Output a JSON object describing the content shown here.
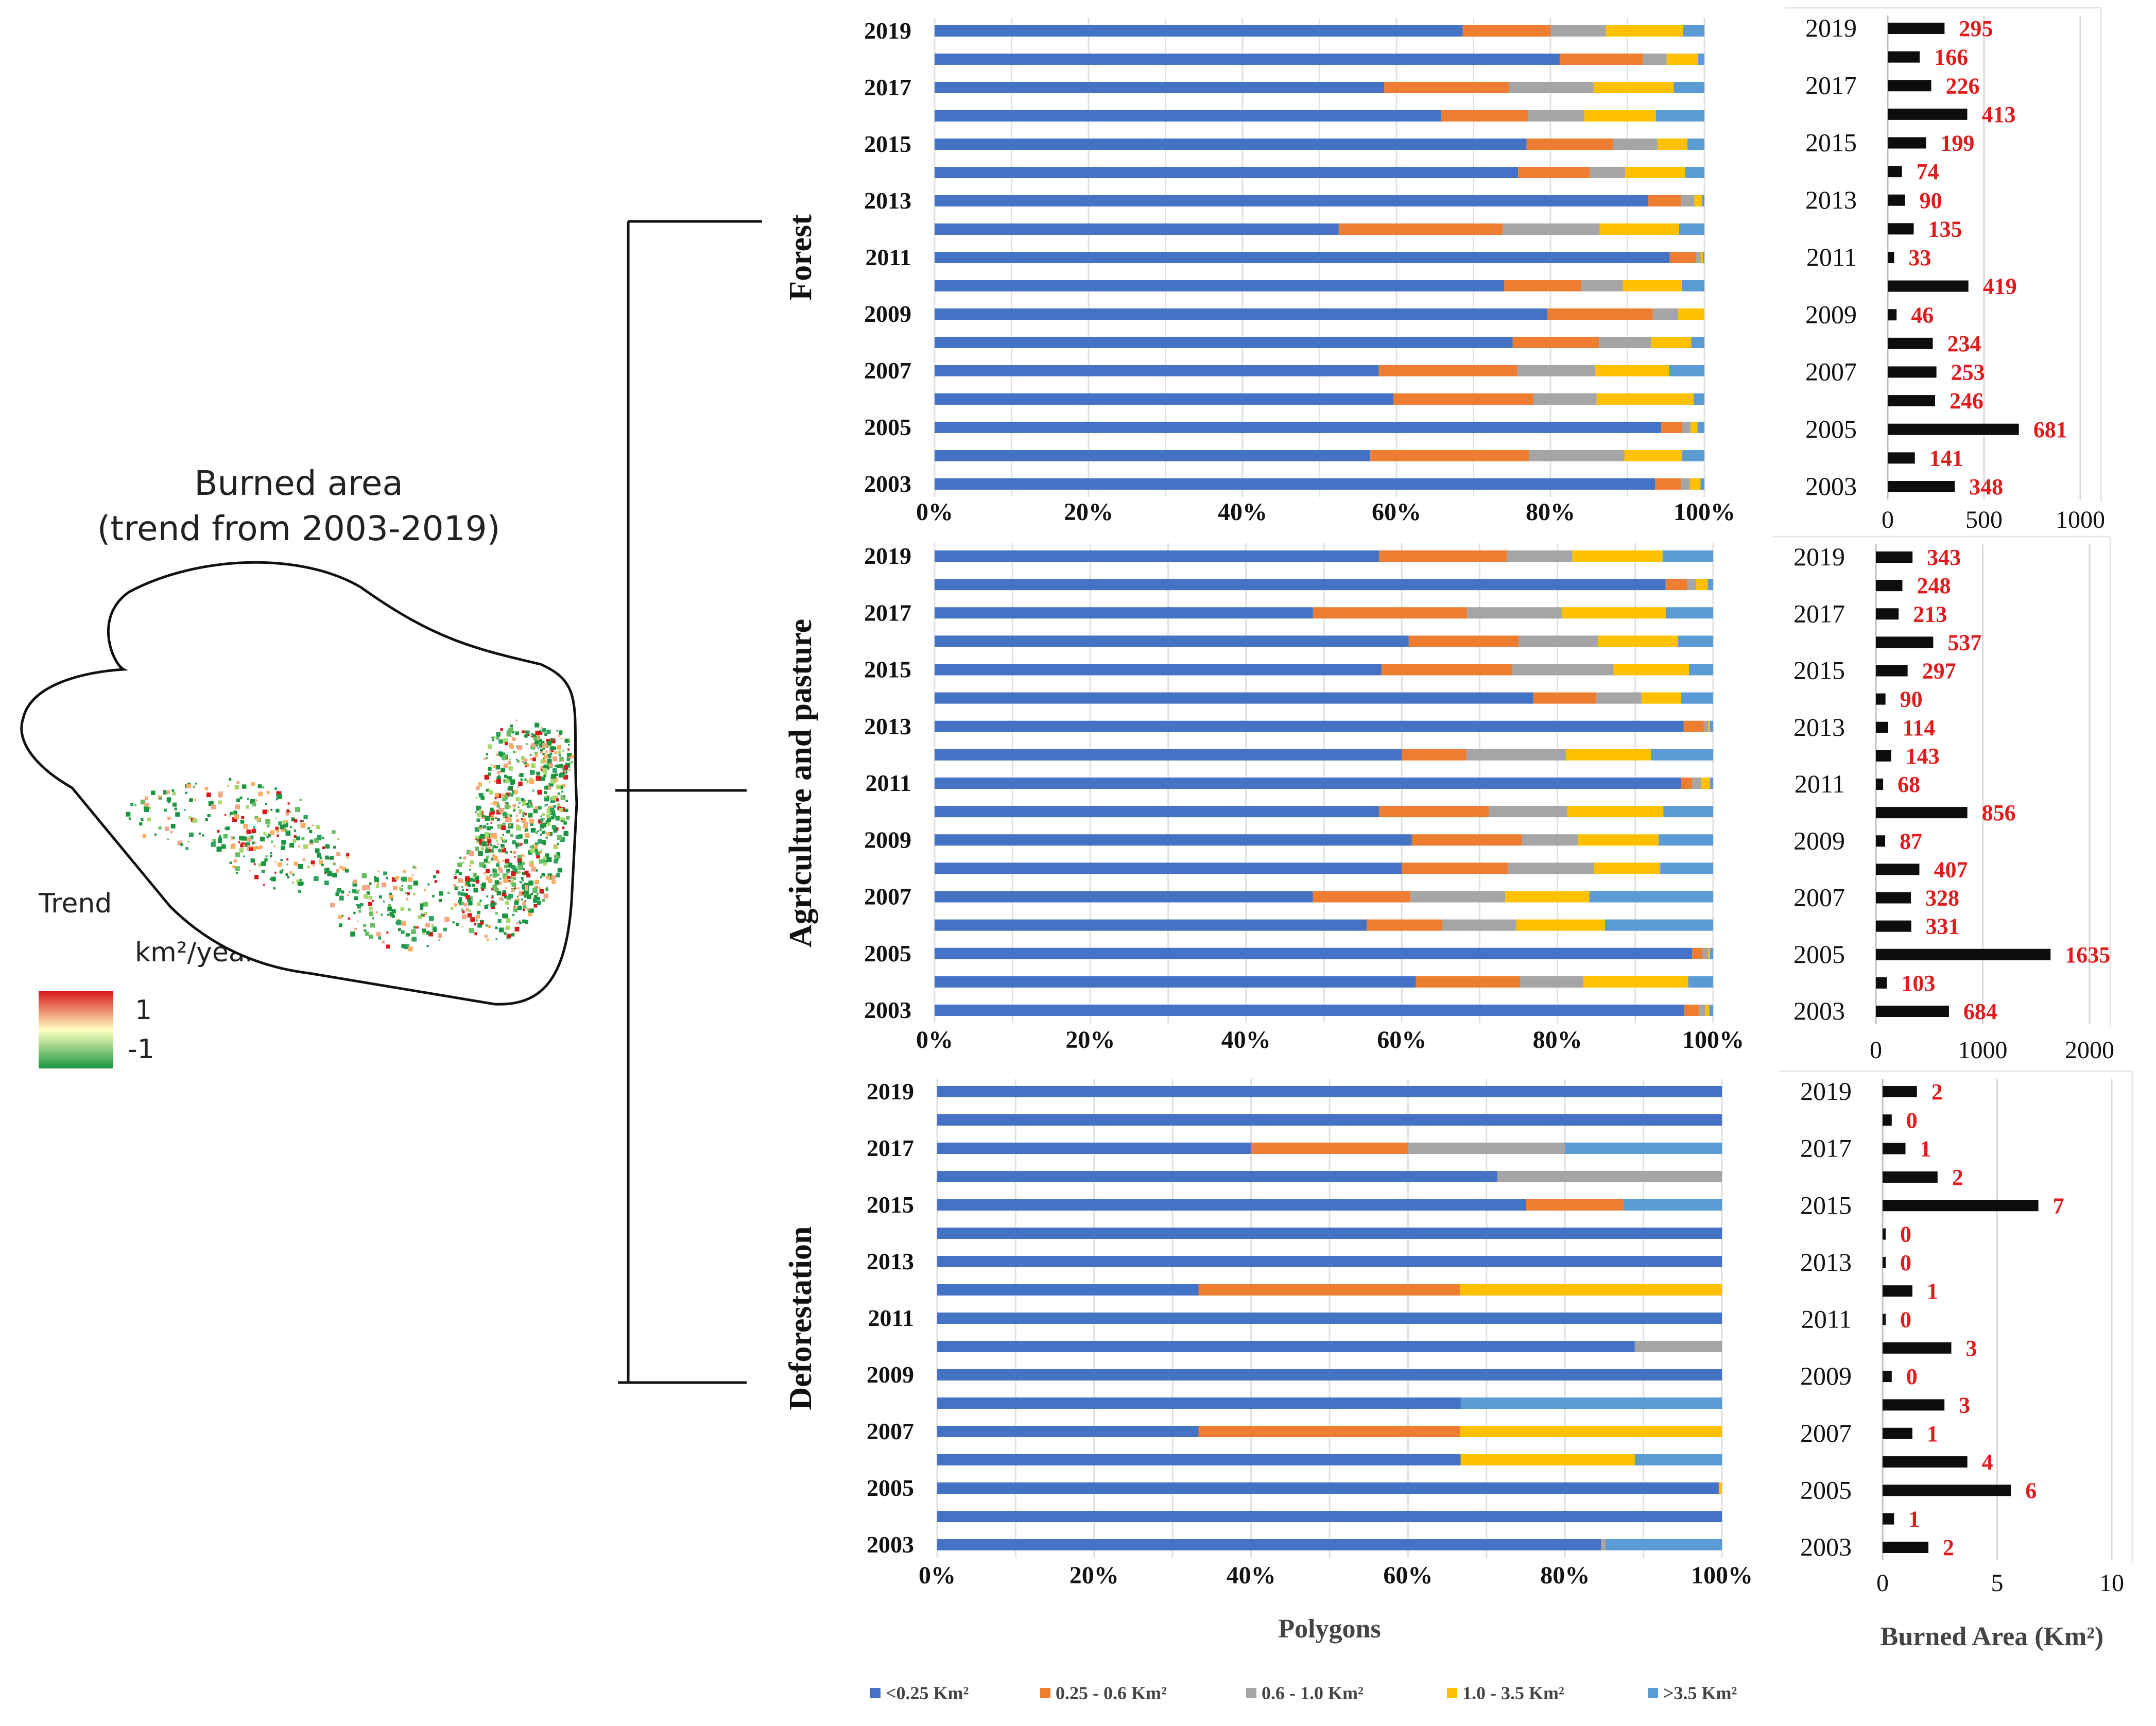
{
  "map": {
    "title_line1": "Burned area",
    "title_line2": "(trend from 2003-2019)",
    "trend_label": "Trend",
    "unit_label": "km²/year",
    "scale_max": "1",
    "scale_min": "-1",
    "colors": {
      "high": "#d7191c",
      "mid": "#ffffbf",
      "low": "#1a9641"
    }
  },
  "legend": {
    "items": [
      {
        "label": "<0.25 Km²",
        "color": "#4472c4"
      },
      {
        "label": "0.25 - 0.6 Km²",
        "color": "#ed7d31"
      },
      {
        "label": "0.6 - 1.0 Km²",
        "color": "#a5a5a5"
      },
      {
        "label": "1.0 - 3.5 Km²",
        "color": "#ffc000"
      },
      {
        "label": ">3.5 Km²",
        "color": "#5b9bd5"
      }
    ]
  },
  "chart_data": [
    {
      "type": "bar",
      "stacked": true,
      "orientation": "horizontal",
      "title": "Forest",
      "xlabel": "",
      "x_ticks": [
        "0%",
        "20%",
        "40%",
        "60%",
        "80%",
        "100%"
      ],
      "y_tick_labels": [
        "2019",
        "2017",
        "2015",
        "2013",
        "2011",
        "2009",
        "2007",
        "2005",
        "2003"
      ],
      "categories": [
        "2019",
        "2018",
        "2017",
        "2016",
        "2015",
        "2014",
        "2013",
        "2012",
        "2011",
        "2010",
        "2009",
        "2008",
        "2007",
        "2006",
        "2005",
        "2004",
        "2003"
      ],
      "series": [
        {
          "name": "<0.25 Km²",
          "values": [
            68.6,
            81.2,
            58.4,
            65.8,
            76.9,
            75.8,
            92.7,
            52.5,
            95.5,
            74.0,
            79.6,
            75.1,
            57.7,
            59.6,
            94.4,
            56.6,
            93.6
          ]
        },
        {
          "name": "0.25 - 0.6 Km²",
          "values": [
            11.4,
            10.8,
            16.2,
            11.3,
            11.2,
            9.3,
            4.3,
            21.3,
            3.4,
            10.0,
            13.7,
            11.2,
            18.0,
            18.2,
            2.7,
            20.6,
            3.4
          ]
        },
        {
          "name": "0.6 - 1.0 Km²",
          "values": [
            7.2,
            3.1,
            11.0,
            7.3,
            5.8,
            4.6,
            1.7,
            12.6,
            0.6,
            5.4,
            3.3,
            6.8,
            10.1,
            8.2,
            1.1,
            12.4,
            1.1
          ]
        },
        {
          "name": "1.0 - 3.5 Km²",
          "values": [
            10.0,
            4.1,
            10.4,
            9.3,
            3.9,
            7.8,
            1.0,
            10.3,
            0.3,
            7.7,
            3.4,
            5.2,
            9.6,
            12.6,
            0.9,
            7.5,
            1.4
          ]
        },
        {
          "name": ">3.5 Km²",
          "values": [
            2.8,
            0.8,
            4.0,
            6.3,
            2.2,
            2.5,
            0.3,
            3.3,
            0.2,
            2.9,
            0.0,
            1.7,
            4.6,
            1.4,
            0.9,
            2.9,
            0.5
          ]
        }
      ]
    },
    {
      "type": "bar",
      "orientation": "horizontal",
      "title": "",
      "xlabel": "",
      "x_ticks": [
        "0",
        "500",
        "1000"
      ],
      "xlim": [
        0,
        1000
      ],
      "y_tick_labels": [
        "2019",
        "2017",
        "2015",
        "2013",
        "2011",
        "2009",
        "2007",
        "2005",
        "2003"
      ],
      "categories": [
        "2019",
        "2018",
        "2017",
        "2016",
        "2015",
        "2014",
        "2013",
        "2012",
        "2011",
        "2010",
        "2009",
        "2008",
        "2007",
        "2006",
        "2005",
        "2004",
        "2003"
      ],
      "values": [
        295,
        166,
        226,
        413,
        199,
        74,
        90,
        135,
        33,
        419,
        46,
        234,
        253,
        246,
        681,
        141,
        348
      ]
    },
    {
      "type": "bar",
      "stacked": true,
      "orientation": "horizontal",
      "title": "Agriculture and pasture",
      "xlabel": "",
      "x_ticks": [
        "0%",
        "20%",
        "40%",
        "60%",
        "80%",
        "100%"
      ],
      "y_tick_labels": [
        "2019",
        "2017",
        "2015",
        "2013",
        "2011",
        "2009",
        "2007",
        "2005",
        "2003"
      ],
      "categories": [
        "2019",
        "2018",
        "2017",
        "2016",
        "2015",
        "2014",
        "2013",
        "2012",
        "2011",
        "2010",
        "2009",
        "2008",
        "2007",
        "2006",
        "2005",
        "2004",
        "2003"
      ],
      "series": [
        {
          "name": "<0.25 Km²",
          "values": [
            57.1,
            93.9,
            48.6,
            60.9,
            57.4,
            76.9,
            96.2,
            60.0,
            95.9,
            57.1,
            61.3,
            60.0,
            48.6,
            55.5,
            97.3,
            61.8,
            96.3
          ]
        },
        {
          "name": "0.25 - 0.6 Km²",
          "values": [
            16.4,
            2.8,
            19.8,
            14.1,
            16.8,
            8.1,
            2.6,
            8.3,
            1.4,
            14.1,
            14.1,
            13.7,
            12.5,
            9.7,
            1.3,
            13.4,
            1.9
          ]
        },
        {
          "name": "0.6 - 1.0 Km²",
          "values": [
            8.4,
            1.1,
            12.2,
            10.2,
            13.0,
            5.8,
            0.6,
            12.8,
            1.2,
            10.1,
            7.2,
            11.0,
            12.2,
            9.5,
            0.8,
            8.1,
            0.8
          ]
        },
        {
          "name": "1.0 - 3.5 Km²",
          "values": [
            11.6,
            1.5,
            13.3,
            10.3,
            9.7,
            5.1,
            0.2,
            10.9,
            1.1,
            12.3,
            10.4,
            8.5,
            10.8,
            11.4,
            0.2,
            13.5,
            0.5
          ]
        },
        {
          "name": ">3.5 Km²",
          "values": [
            6.5,
            0.7,
            6.1,
            4.5,
            3.1,
            4.1,
            0.4,
            8.0,
            0.4,
            6.4,
            7.0,
            6.8,
            15.9,
            13.9,
            0.4,
            3.2,
            0.5
          ]
        }
      ]
    },
    {
      "type": "bar",
      "orientation": "horizontal",
      "title": "",
      "xlabel": "",
      "x_ticks": [
        "0",
        "1000",
        "2000"
      ],
      "xlim": [
        0,
        2000
      ],
      "y_tick_labels": [
        "2019",
        "2017",
        "2015",
        "2013",
        "2011",
        "2009",
        "2007",
        "2005",
        "2003"
      ],
      "categories": [
        "2019",
        "2018",
        "2017",
        "2016",
        "2015",
        "2014",
        "2013",
        "2012",
        "2011",
        "2010",
        "2009",
        "2008",
        "2007",
        "2006",
        "2005",
        "2004",
        "2003"
      ],
      "values": [
        343,
        248,
        213,
        537,
        297,
        90,
        114,
        143,
        68,
        856,
        87,
        407,
        328,
        331,
        1635,
        103,
        684
      ]
    },
    {
      "type": "bar",
      "stacked": true,
      "orientation": "horizontal",
      "title": "Deforestation",
      "xlabel": "Polygons",
      "x_ticks": [
        "0%",
        "20%",
        "40%",
        "60%",
        "80%",
        "100%"
      ],
      "y_tick_labels": [
        "2019",
        "2017",
        "2015",
        "2013",
        "2011",
        "2009",
        "2007",
        "2005",
        "2003"
      ],
      "categories": [
        "2019",
        "2018",
        "2017",
        "2016",
        "2015",
        "2014",
        "2013",
        "2012",
        "2011",
        "2010",
        "2009",
        "2008",
        "2007",
        "2006",
        "2005",
        "2004",
        "2003"
      ],
      "series": [
        {
          "name": "<0.25 Km²",
          "values": [
            100,
            100,
            40,
            71.4,
            75,
            100,
            100,
            33.3,
            100,
            88.9,
            100,
            66.7,
            33.3,
            66.7,
            99.6,
            100,
            84.6
          ]
        },
        {
          "name": "0.25 - 0.6 Km²",
          "values": [
            0,
            0,
            20,
            0,
            12.5,
            0,
            0,
            33.3,
            0,
            0,
            0,
            0,
            33.3,
            0,
            0,
            0,
            0
          ]
        },
        {
          "name": "0.6 - 1.0 Km²",
          "values": [
            0,
            0,
            20,
            28.6,
            0,
            0,
            0,
            0,
            0,
            11.1,
            0,
            0,
            0,
            0,
            0,
            0,
            0.6
          ]
        },
        {
          "name": "1.0 - 3.5 Km²",
          "values": [
            0,
            0,
            0,
            0,
            0,
            0,
            0,
            33.4,
            0,
            0,
            0,
            0,
            33.4,
            22.2,
            0.4,
            0,
            0
          ]
        },
        {
          "name": ">3.5 Km²",
          "values": [
            0,
            0,
            20,
            0,
            12.5,
            0,
            0,
            0,
            0,
            0,
            0,
            33.3,
            0,
            11.1,
            0,
            0,
            14.8
          ]
        }
      ]
    },
    {
      "type": "bar",
      "orientation": "horizontal",
      "title": "",
      "xlabel": "Burned Area (Km²)",
      "x_ticks": [
        "0",
        "5",
        "10"
      ],
      "xlim": [
        0,
        10
      ],
      "y_tick_labels": [
        "2019",
        "2017",
        "2015",
        "2013",
        "2011",
        "2009",
        "2007",
        "2005",
        "2003"
      ],
      "categories": [
        "2019",
        "2018",
        "2017",
        "2016",
        "2015",
        "2014",
        "2013",
        "2012",
        "2011",
        "2010",
        "2009",
        "2008",
        "2007",
        "2006",
        "2005",
        "2004",
        "2003"
      ],
      "values": [
        1.5,
        0.4,
        1.0,
        2.4,
        6.8,
        0.1,
        0.1,
        1.3,
        0.0,
        3.0,
        0.4,
        2.7,
        1.3,
        3.7,
        5.6,
        0.5,
        2.0
      ],
      "data_labels": [
        "2",
        "0",
        "1",
        "2",
        "7",
        "0",
        "0",
        "1",
        "0",
        "3",
        "0",
        "3",
        "1",
        "4",
        "6",
        "1",
        "2"
      ]
    }
  ]
}
